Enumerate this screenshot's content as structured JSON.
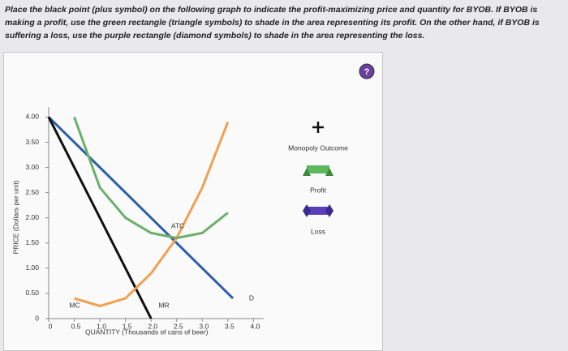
{
  "question": "Place the black point (plus symbol) on the following graph to indicate the profit-maximizing price and quantity for BYOB. If BYOB is making a profit, use the green rectangle (triangle symbols) to shade in the area representing its profit. On the other hand, if BYOB is suffering a loss, use the purple rectangle (diamond symbols) to shade in the area representing the loss.",
  "help": "?",
  "tools": [
    "Monopoly Outcome",
    "Profit",
    "Loss"
  ],
  "chart_data": {
    "type": "line",
    "xlabel": "QUANTITY (Thousands of cans of beer)",
    "ylabel": "PRICE (Dollars per unit)",
    "xlim": [
      0,
      4.2
    ],
    "ylim": [
      0,
      4.2
    ],
    "xticks": [
      0,
      0.5,
      {
        "value": 1,
        "label": "1.0"
      },
      1.5,
      {
        "value": 2,
        "label": "2.0"
      },
      2.5,
      {
        "value": 3,
        "label": "3.0"
      },
      3.5,
      {
        "value": 4,
        "label": "4.0"
      }
    ],
    "yticks": [
      0,
      {
        "value": 0.5,
        "label": "0.50"
      },
      {
        "value": 1,
        "label": "1.00"
      },
      {
        "value": 1.5,
        "label": "1.50"
      },
      {
        "value": 2,
        "label": "2.00"
      },
      {
        "value": 2.5,
        "label": "2.50"
      },
      {
        "value": 3,
        "label": "3.00"
      },
      {
        "value": 3.5,
        "label": "3.50"
      },
      {
        "value": 4,
        "label": "4.00"
      }
    ],
    "series": [
      {
        "name": "D",
        "color": "#2d5fa8",
        "x": [
          0,
          3.6
        ],
        "values": [
          4,
          0.4
        ]
      },
      {
        "name": "MR",
        "color": "#111111",
        "x": [
          0,
          2
        ],
        "values": [
          4,
          0
        ]
      },
      {
        "name": "MC",
        "color": "#f0a050",
        "x": [
          0.5,
          1,
          1.5,
          2,
          2.5,
          3,
          3.5
        ],
        "values": [
          0.4,
          0.25,
          0.4,
          0.9,
          1.6,
          2.6,
          3.9
        ]
      },
      {
        "name": "ATC",
        "color": "#6ab06a",
        "x": [
          0.5,
          1,
          1.5,
          2,
          2.5,
          3,
          3.5
        ],
        "values": [
          4,
          2.6,
          2,
          1.7,
          1.6,
          1.7,
          2.1
        ]
      }
    ]
  }
}
